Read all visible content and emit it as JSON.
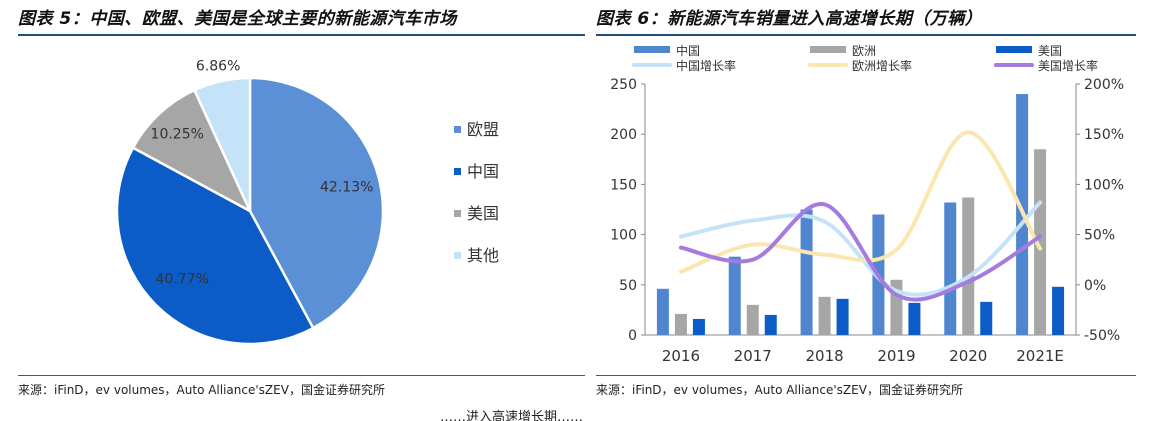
{
  "left": {
    "title": "图表 5：中国、欧盟、美国是全球主要的新能源汽车市场",
    "source": "来源：iFinD，ev volumes，Auto Alliance'sZEV，国金证券研究所"
  },
  "right": {
    "title": "图表 6：新能源汽车销量进入高速增长期（万辆）",
    "source": "来源：iFinD，ev volumes，Auto Alliance'sZEV，国金证券研究所"
  },
  "footer_fragment": "……进入高速增长期……",
  "chart_data": [
    {
      "type": "pie",
      "title": "图表 5：中国、欧盟、美国是全球主要的新能源汽车市场",
      "slices": [
        {
          "label": "欧盟",
          "value": 42.13,
          "display": "42.13%",
          "color": "#5b8fd6"
        },
        {
          "label": "中国",
          "value": 40.77,
          "display": "40.77%",
          "color": "#0b5cc7"
        },
        {
          "label": "美国",
          "value": 10.25,
          "display": "10.25%",
          "color": "#a6a6a6"
        },
        {
          "label": "其他",
          "value": 6.86,
          "display": "6.86%",
          "color": "#c5e3f8"
        }
      ],
      "legend_placement": "right"
    },
    {
      "type": "bar",
      "title": "图表 6：新能源汽车销量进入高速增长期（万辆）",
      "categories": [
        "2016",
        "2017",
        "2018",
        "2019",
        "2020",
        "2021E"
      ],
      "series": [
        {
          "name": "中国",
          "kind": "bar",
          "axis": "left",
          "color": "#4f86cf",
          "values": [
            46,
            78,
            125,
            120,
            132,
            240
          ]
        },
        {
          "name": "欧洲",
          "kind": "bar",
          "axis": "left",
          "color": "#a6a6a6",
          "values": [
            21,
            30,
            38,
            55,
            137,
            185
          ]
        },
        {
          "name": "美国",
          "kind": "bar",
          "axis": "left",
          "color": "#0b5cc7",
          "values": [
            16,
            20,
            36,
            32,
            33,
            48
          ]
        },
        {
          "name": "中国增长率",
          "kind": "line",
          "axis": "right",
          "color": "#c5e3f8",
          "values": [
            0.48,
            0.64,
            0.63,
            -0.06,
            0.08,
            0.82
          ]
        },
        {
          "name": "欧洲增长率",
          "kind": "line",
          "axis": "right",
          "color": "#fbe6b0",
          "values": [
            0.13,
            0.4,
            0.3,
            0.35,
            1.52,
            0.36
          ]
        },
        {
          "name": "美国增长率",
          "kind": "line",
          "axis": "right",
          "color": "#a57be0",
          "values": [
            0.37,
            0.25,
            0.8,
            -0.1,
            0.03,
            0.48
          ]
        }
      ],
      "ylim": [
        0,
        250
      ],
      "yticks": [
        "0",
        "50",
        "100",
        "150",
        "200",
        "250"
      ],
      "y2lim": [
        -0.5,
        2.0
      ],
      "y2ticks": [
        "-50%",
        "0%",
        "50%",
        "100%",
        "150%",
        "200%"
      ],
      "legend_placement": "top",
      "grid": false
    }
  ]
}
